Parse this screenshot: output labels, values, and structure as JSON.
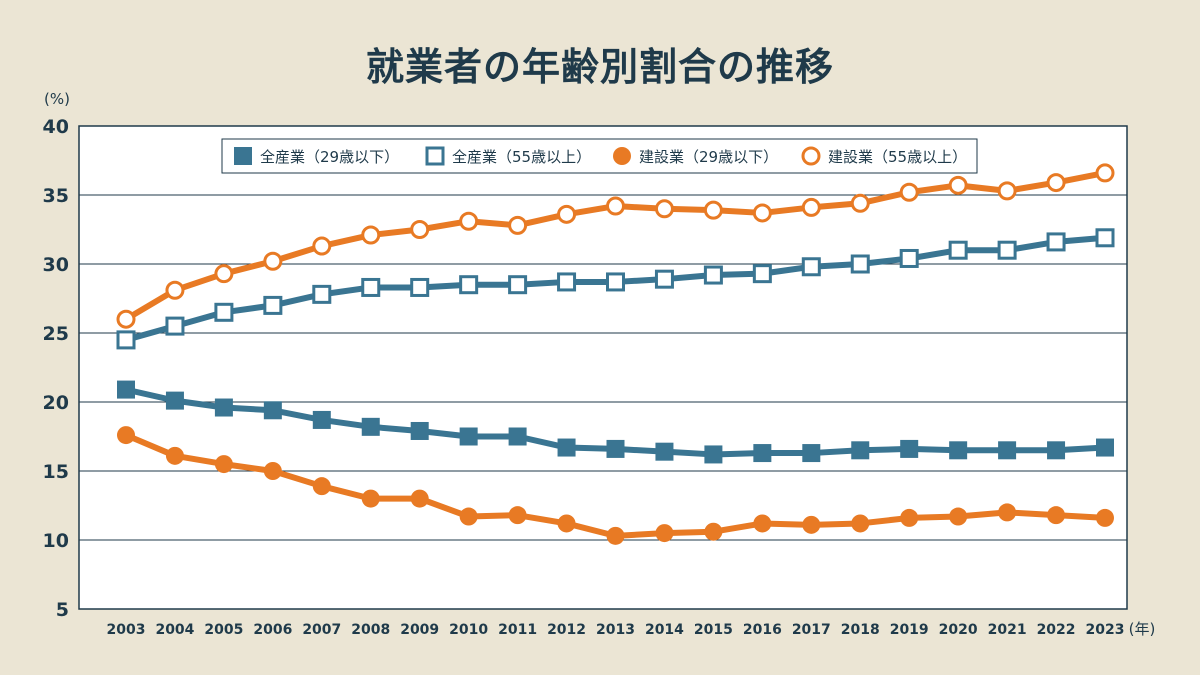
{
  "chart_data": {
    "type": "line",
    "title": "就業者の年齢別割合の推移",
    "ylabel": "(%)",
    "xlabel": "(年)",
    "ylim": [
      5,
      40
    ],
    "yticks": [
      5,
      10,
      15,
      20,
      25,
      30,
      35,
      40
    ],
    "grid": true,
    "legend_position": "top",
    "x": [
      "2003",
      "2004",
      "2005",
      "2006",
      "2007",
      "2008",
      "2009",
      "2010",
      "2011",
      "2012",
      "2013",
      "2014",
      "2015",
      "2016",
      "2017",
      "2018",
      "2019",
      "2020",
      "2021",
      "2022",
      "2023"
    ],
    "series": [
      {
        "name": "全産業（29歳以下）",
        "color": "#3a7592",
        "marker": "square-filled",
        "values": [
          20.9,
          20.1,
          19.6,
          19.4,
          18.7,
          18.2,
          17.9,
          17.5,
          17.5,
          16.7,
          16.6,
          16.4,
          16.2,
          16.3,
          16.3,
          16.5,
          16.6,
          16.5,
          16.5,
          16.5,
          16.7
        ]
      },
      {
        "name": "全産業（55歳以上）",
        "color": "#3a7592",
        "marker": "square-hollow",
        "values": [
          24.5,
          25.5,
          26.5,
          27.0,
          27.8,
          28.3,
          28.3,
          28.5,
          28.5,
          28.7,
          28.7,
          28.9,
          29.2,
          29.3,
          29.8,
          30.0,
          30.4,
          31.0,
          31.0,
          31.6,
          31.9
        ]
      },
      {
        "name": "建設業（29歳以下）",
        "color": "#e87a24",
        "marker": "circle-filled",
        "values": [
          17.6,
          16.1,
          15.5,
          15.0,
          13.9,
          13.0,
          13.0,
          11.7,
          11.8,
          11.2,
          10.3,
          10.5,
          10.6,
          11.2,
          11.1,
          11.2,
          11.6,
          11.7,
          12.0,
          11.8,
          11.6
        ]
      },
      {
        "name": "建設業（55歳以上）",
        "color": "#e87a24",
        "marker": "circle-hollow",
        "values": [
          26.0,
          28.1,
          29.3,
          30.2,
          31.3,
          32.1,
          32.5,
          33.1,
          32.8,
          33.6,
          34.2,
          34.0,
          33.9,
          33.7,
          34.1,
          34.4,
          35.2,
          35.7,
          35.3,
          35.9,
          36.6
        ]
      }
    ]
  }
}
